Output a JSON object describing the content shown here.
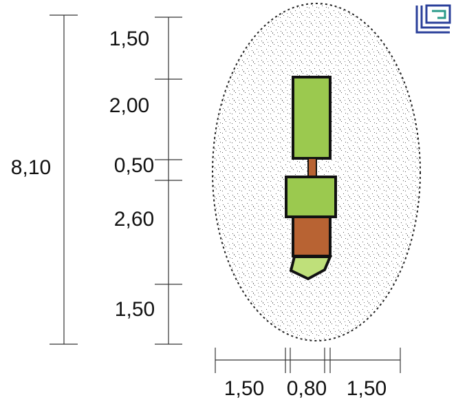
{
  "total": "8,10",
  "vertical_dims": [
    "1,50",
    "2,00",
    "0,50",
    "2,60",
    "1,50"
  ],
  "horizontal_dims": [
    "1,50",
    "0,80",
    "1,50"
  ]
}
